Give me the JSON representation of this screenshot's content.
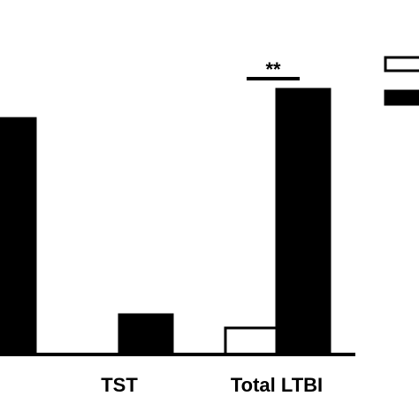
{
  "chart_data": {
    "type": "bar",
    "title": "",
    "xlabel": "",
    "ylabel": "",
    "ylim": [
      0,
      100
    ],
    "categories": [
      "",
      "TST",
      "Total LTBI"
    ],
    "series": [
      {
        "color": "#ffffff",
        "values": [
          null,
          0,
          10
        ]
      },
      {
        "color": "#000000",
        "values": [
          89,
          15,
          100
        ]
      }
    ],
    "grid": false,
    "legend": "top-right",
    "annotations": [
      {
        "text": "**",
        "category": "Total LTBI"
      }
    ]
  }
}
